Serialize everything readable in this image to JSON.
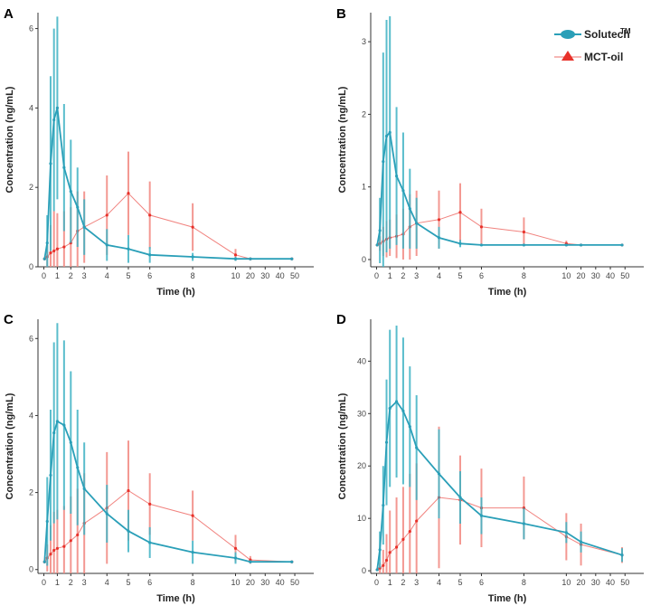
{
  "legend": {
    "solutech_label": "Solutech",
    "solutech_sup": "TM",
    "mct_label": "MCT-oil",
    "solutech_color": "#2a9fb8",
    "mct_color": "#e8312a"
  },
  "chart_data": [
    {
      "panel": "A",
      "type": "line",
      "xlabel": "Time (h)",
      "ylabel": "Concentration (ng/mL)",
      "x_ticks": [
        "0",
        "1",
        "2",
        "3",
        "4",
        "5",
        "6",
        "8",
        "10",
        "20",
        "30",
        "40",
        "50"
      ],
      "y_ticks": [
        0,
        2,
        4,
        6
      ],
      "ylim": [
        0,
        6.4
      ],
      "series": [
        {
          "name": "Solutech",
          "x": [
            0.05,
            0.25,
            0.5,
            0.75,
            1,
            1.5,
            2,
            2.5,
            3,
            4,
            5,
            6,
            8,
            10,
            20,
            48
          ],
          "y": [
            0.2,
            0.6,
            2.6,
            3.7,
            4.0,
            2.5,
            1.9,
            1.5,
            1.0,
            0.55,
            0.45,
            0.3,
            0.25,
            0.2,
            0.2,
            0.2
          ],
          "err": [
            0,
            0.7,
            2.2,
            2.3,
            2.3,
            1.6,
            1.3,
            1.0,
            0.7,
            0.4,
            0.35,
            0.2,
            0.1,
            0.05,
            0,
            0
          ]
        },
        {
          "name": "MCT-oil",
          "x": [
            0.05,
            0.25,
            0.5,
            0.75,
            1,
            1.5,
            2,
            2.5,
            3,
            4,
            5,
            6,
            8,
            10,
            20,
            48
          ],
          "y": [
            0.2,
            0.25,
            0.35,
            0.4,
            0.45,
            0.5,
            0.6,
            0.9,
            1.0,
            1.3,
            1.85,
            1.3,
            1.0,
            0.3,
            0.2,
            0.2
          ],
          "err": [
            0,
            0.3,
            0.7,
            1.0,
            0.9,
            0.9,
            0.9,
            1.0,
            0.9,
            1.0,
            1.05,
            0.85,
            0.6,
            0.15,
            0,
            0
          ]
        }
      ]
    },
    {
      "panel": "B",
      "type": "line",
      "xlabel": "Time (h)",
      "ylabel": "Concentration (ng/mL)",
      "x_ticks": [
        "0",
        "1",
        "2",
        "3",
        "4",
        "5",
        "6",
        "8",
        "10",
        "20",
        "30",
        "40",
        "50"
      ],
      "y_ticks": [
        0,
        1,
        2,
        3
      ],
      "ylim": [
        -0.1,
        3.4
      ],
      "series": [
        {
          "name": "Solutech",
          "x": [
            0.05,
            0.25,
            0.5,
            0.75,
            1,
            1.5,
            2,
            2.5,
            3,
            4,
            5,
            6,
            8,
            10,
            20,
            48
          ],
          "y": [
            0.2,
            0.4,
            1.35,
            1.7,
            1.75,
            1.15,
            0.95,
            0.7,
            0.5,
            0.3,
            0.22,
            0.2,
            0.2,
            0.2,
            0.2,
            0.2
          ],
          "err": [
            0,
            0.45,
            1.5,
            1.6,
            1.6,
            0.95,
            0.8,
            0.55,
            0.35,
            0.15,
            0.05,
            0,
            0,
            0,
            0,
            0
          ]
        },
        {
          "name": "MCT-oil",
          "x": [
            0.05,
            0.25,
            0.5,
            0.75,
            1,
            1.5,
            2,
            2.5,
            3,
            4,
            5,
            6,
            8,
            10,
            20,
            48
          ],
          "y": [
            0.2,
            0.22,
            0.25,
            0.28,
            0.3,
            0.32,
            0.35,
            0.45,
            0.5,
            0.55,
            0.65,
            0.45,
            0.38,
            0.22,
            0.2,
            0.2
          ],
          "err": [
            0,
            0.1,
            0.2,
            0.25,
            0.25,
            0.3,
            0.35,
            0.45,
            0.45,
            0.4,
            0.4,
            0.25,
            0.2,
            0.04,
            0,
            0
          ]
        }
      ]
    },
    {
      "panel": "C",
      "type": "line",
      "xlabel": "Time (h)",
      "ylabel": "Concentration (ng/mL)",
      "x_ticks": [
        "0",
        "1",
        "2",
        "3",
        "4",
        "5",
        "6",
        "8",
        "10",
        "20",
        "30",
        "40",
        "50"
      ],
      "y_ticks": [
        0,
        2,
        4,
        6
      ],
      "ylim": [
        -0.1,
        6.5
      ],
      "series": [
        {
          "name": "Solutech",
          "x": [
            0.05,
            0.25,
            0.5,
            0.75,
            1,
            1.5,
            2,
            2.5,
            3,
            4,
            5,
            6,
            8,
            10,
            20,
            48
          ],
          "y": [
            0.2,
            1.25,
            2.45,
            3.55,
            3.85,
            3.75,
            3.3,
            2.65,
            2.1,
            1.45,
            1.0,
            0.7,
            0.45,
            0.3,
            0.2,
            0.2
          ],
          "err": [
            0,
            1.15,
            1.7,
            2.35,
            2.55,
            2.2,
            1.85,
            1.5,
            1.2,
            0.75,
            0.55,
            0.4,
            0.3,
            0.15,
            0.04,
            0
          ]
        },
        {
          "name": "MCT-oil",
          "x": [
            0.05,
            0.25,
            0.5,
            0.75,
            1,
            1.5,
            2,
            2.5,
            3,
            4,
            5,
            6,
            8,
            10,
            20,
            48
          ],
          "y": [
            0.2,
            0.3,
            0.4,
            0.5,
            0.55,
            0.6,
            0.75,
            0.9,
            1.2,
            1.6,
            2.05,
            1.7,
            1.4,
            0.55,
            0.25,
            0.2
          ],
          "err": [
            0,
            0.35,
            0.75,
            1.0,
            1.0,
            1.05,
            1.15,
            1.2,
            1.3,
            1.45,
            1.3,
            0.8,
            0.65,
            0.35,
            0.1,
            0
          ]
        }
      ]
    },
    {
      "panel": "D",
      "type": "line",
      "xlabel": "Time (h)",
      "ylabel": "Concentration (ng/mL)",
      "x_ticks": [
        "0",
        "1",
        "2",
        "3",
        "4",
        "5",
        "6",
        "8",
        "10",
        "20",
        "30",
        "40",
        "50"
      ],
      "y_ticks": [
        0,
        10,
        20,
        30,
        40
      ],
      "ylim": [
        -0.5,
        48
      ],
      "series": [
        {
          "name": "Solutech",
          "x": [
            0.05,
            0.25,
            0.5,
            0.75,
            1,
            1.5,
            2,
            2.5,
            3,
            4,
            5,
            6,
            8,
            10,
            20,
            48
          ],
          "y": [
            0.2,
            4.0,
            12.5,
            24.5,
            31.0,
            32.3,
            30.5,
            27.5,
            23.5,
            18.5,
            14.0,
            10.5,
            9.0,
            7.3,
            5.5,
            3.0
          ],
          "err": [
            0,
            3.5,
            7.5,
            12.0,
            15.0,
            14.5,
            14.0,
            11.5,
            10.0,
            8.5,
            5.0,
            3.5,
            3.0,
            2.0,
            2.0,
            1.3
          ]
        },
        {
          "name": "MCT-oil",
          "x": [
            0.05,
            0.25,
            0.5,
            0.75,
            1,
            1.5,
            2,
            2.5,
            3,
            4,
            5,
            6,
            8,
            10,
            20,
            48
          ],
          "y": [
            0.2,
            0.5,
            1.0,
            2.0,
            3.5,
            4.5,
            6.0,
            7.5,
            9.5,
            14.0,
            13.5,
            12.0,
            12.0,
            6.5,
            5.0,
            3.0
          ],
          "err": [
            0,
            1.0,
            3.0,
            5.0,
            8.0,
            9.5,
            10.0,
            11.0,
            11.0,
            13.5,
            8.5,
            7.5,
            6.0,
            4.5,
            4.0,
            1.5
          ]
        }
      ]
    }
  ]
}
